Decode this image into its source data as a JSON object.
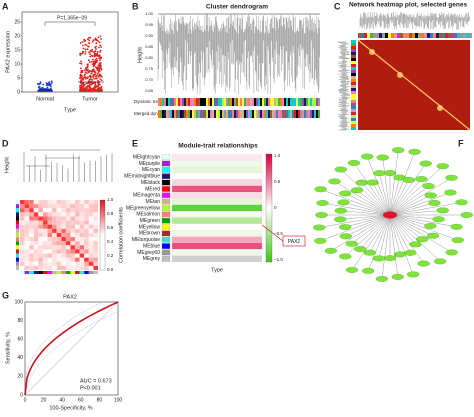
{
  "panels": {
    "A": {
      "label": "A",
      "ylabel": "PAX2 expression",
      "xlabel": "Type",
      "categories": [
        "Normal",
        "Tumor"
      ],
      "yticks": [
        "0",
        "5",
        "10",
        "15",
        "20",
        "25"
      ],
      "annotation": "P=1.365e−09"
    },
    "B": {
      "label": "B",
      "title": "Cluster dendrogram",
      "ylabel": "Height",
      "yticks": [
        "1.00",
        "0.95",
        "0.90",
        "0.85",
        "0.80",
        "0.75",
        "0.70",
        "0.65"
      ],
      "rows": [
        "Dynamic tree cut",
        "Merged dynamic"
      ]
    },
    "C": {
      "label": "C",
      "title": "Network heatmap plot, selected genes"
    },
    "D": {
      "label": "D",
      "ylabel": "Height",
      "colorbar_label": "Correlation coefficients",
      "colorbar_ticks": [
        "1.0",
        "0.8",
        "0.6",
        "0.4",
        "0.2",
        "0.0"
      ]
    },
    "E": {
      "label": "E",
      "title": "Module-trait relationships",
      "xlabel": "Type",
      "callout": "PAX2",
      "modules": [
        "MElightcyan",
        "MEpurple",
        "MEcyan",
        "MEmidnightblue",
        "MEblack",
        "MEred",
        "MEmagenta",
        "MEtan",
        "MEgreenyellow",
        "MEsalmon",
        "MEgreen",
        "MEyellow",
        "MEbrown",
        "MEturquoise",
        "MEblue",
        "MEgrey60",
        "MEgrey"
      ],
      "module_colors": [
        "#e0ffff",
        "#a020f0",
        "#00ffff",
        "#191970",
        "#000000",
        "#ff0000",
        "#ff00ff",
        "#d2b48c",
        "#adff2f",
        "#fa8072",
        "#00a000",
        "#ffff00",
        "#a52a2a",
        "#40e0d0",
        "#0000ff",
        "#999999",
        "#bebebe"
      ],
      "cell_colors": [
        "#fbe8ee",
        "#f3f7ec",
        "#e8f6d8",
        "#ffffff",
        "#f8d5e0",
        "#e9557f",
        "#f9dbe5",
        "#e9f6db",
        "#5fd43a",
        "#f5f9ef",
        "#b6e89a",
        "#ffffff",
        "#eef8e6",
        "#f3a7bd",
        "#e84f7c",
        "#f2f8ee",
        "#cfcfcf"
      ],
      "colorbar_ticks": [
        "1.0",
        "0.5",
        "0",
        "−0.5",
        "−1.0"
      ]
    },
    "F": {
      "label": "F"
    },
    "G": {
      "label": "G",
      "title": "PAX2",
      "ylabel": "Sensitivity, %",
      "xlabel": "100-Specificity, %",
      "xticks": [
        "0",
        "20",
        "40",
        "60",
        "80",
        "100"
      ],
      "yticks": [
        "0",
        "20",
        "40",
        "60",
        "80",
        "100"
      ],
      "auc": "AUC = 0.673",
      "p": "P<0.001"
    }
  }
}
